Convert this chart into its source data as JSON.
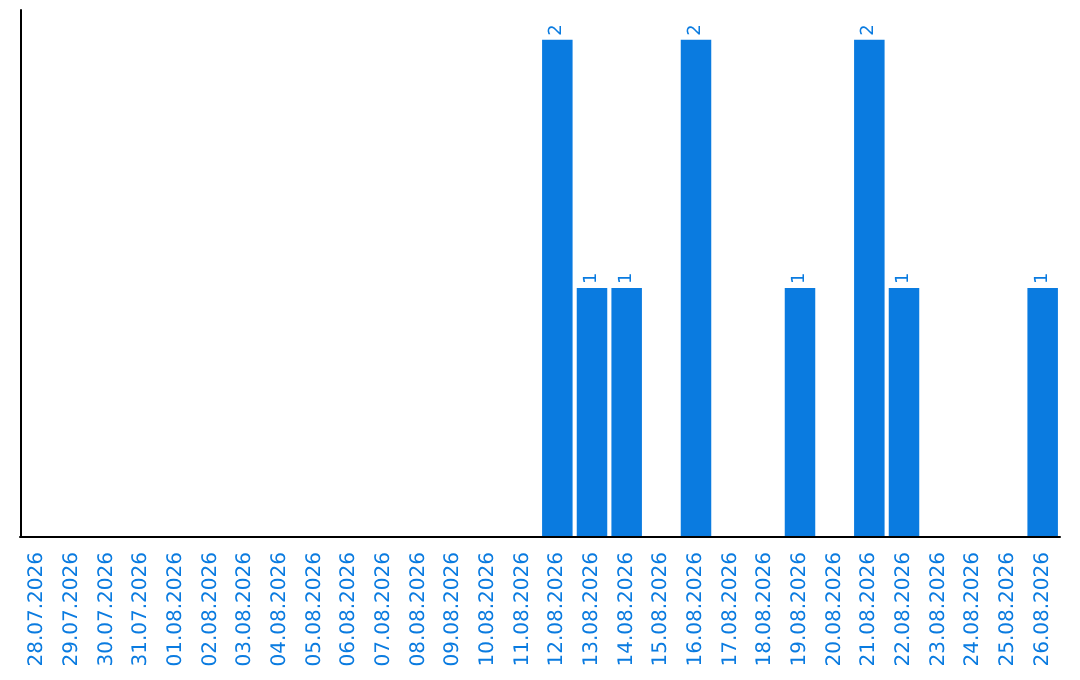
{
  "chart_data": {
    "type": "bar",
    "categories": [
      "28.07.2026",
      "29.07.2026",
      "30.07.2026",
      "31.07.2026",
      "01.08.2026",
      "02.08.2026",
      "03.08.2026",
      "04.08.2026",
      "05.08.2026",
      "06.08.2026",
      "07.08.2026",
      "08.08.2026",
      "09.08.2026",
      "10.08.2026",
      "11.08.2026",
      "12.08.2026",
      "13.08.2026",
      "14.08.2026",
      "15.08.2026",
      "16.08.2026",
      "17.08.2026",
      "18.08.2026",
      "19.08.2026",
      "20.08.2026",
      "21.08.2026",
      "22.08.2026",
      "23.08.2026",
      "24.08.2026",
      "25.08.2026",
      "26.08.2026"
    ],
    "values": [
      null,
      null,
      null,
      null,
      null,
      null,
      null,
      null,
      null,
      null,
      null,
      null,
      null,
      null,
      null,
      2,
      1,
      1,
      null,
      2,
      null,
      null,
      1,
      null,
      2,
      1,
      null,
      null,
      null,
      1
    ],
    "color": "#0a7be0",
    "data_labels": true,
    "tick_labels": "x",
    "grid": false
  }
}
